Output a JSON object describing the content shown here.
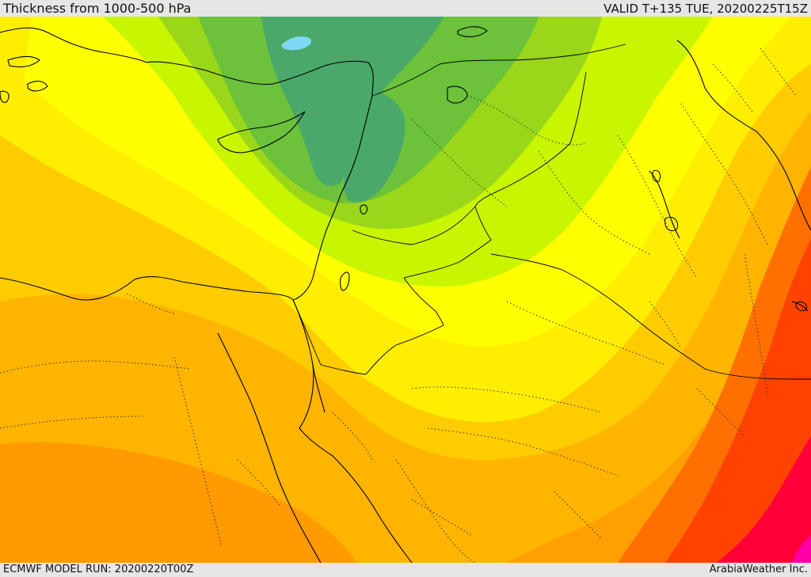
{
  "header": {
    "title": "Thickness from 1000-500 hPa",
    "valid": "VALID T+135 TUE, 20200225T15Z"
  },
  "footer": {
    "model_run": "ECMWF MODEL RUN: 20200220T00Z",
    "brand": "ArabiaWeather Inc."
  },
  "map": {
    "field": "1000-500 hPa thickness",
    "region": "Eastern Mediterranean / Levant / Arabian Peninsula",
    "color_scale": [
      "#7fd9f5",
      "#4aa86a",
      "#6cc23a",
      "#9ad619",
      "#c8f500",
      "#ffff00",
      "#ffd800",
      "#ffb000",
      "#ff8c00",
      "#ff6a00",
      "#ff3a00",
      "#ff0030",
      "#ff00b0"
    ],
    "colors": {
      "coastline": "#000000",
      "border": "#000000",
      "province_border": "#333333",
      "background_fill": "#ffff00"
    },
    "legend_visible": false
  }
}
